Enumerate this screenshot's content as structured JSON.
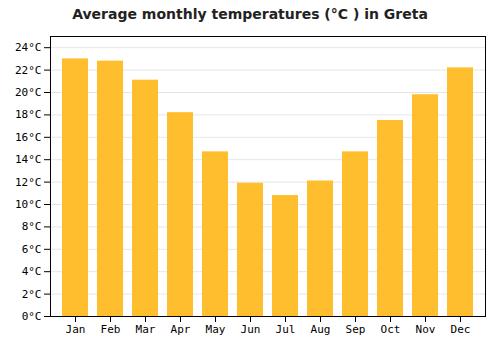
{
  "chart_data": {
    "type": "bar",
    "title": "Average monthly temperatures (°C ) in Greta",
    "categories": [
      "Jan",
      "Feb",
      "Mar",
      "Apr",
      "May",
      "Jun",
      "Jul",
      "Aug",
      "Sep",
      "Oct",
      "Nov",
      "Dec"
    ],
    "values": [
      23.0,
      22.8,
      21.1,
      18.2,
      14.7,
      11.9,
      10.8,
      12.1,
      14.7,
      17.5,
      19.8,
      22.2
    ],
    "color": "#FFBE2D",
    "ylim": [
      0,
      25
    ],
    "yticks": [
      {
        "value": 0,
        "label": "0°C"
      },
      {
        "value": 2,
        "label": "2°C"
      },
      {
        "value": 4,
        "label": "4°C"
      },
      {
        "value": 6,
        "label": "6°C"
      },
      {
        "value": 8,
        "label": "8°C"
      },
      {
        "value": 10,
        "label": "10°C"
      },
      {
        "value": 12,
        "label": "12°C"
      },
      {
        "value": 14,
        "label": "14°C"
      },
      {
        "value": 16,
        "label": "16°C"
      },
      {
        "value": 18,
        "label": "18°C"
      },
      {
        "value": 20,
        "label": "20°C"
      },
      {
        "value": 22,
        "label": "22°C"
      },
      {
        "value": 24,
        "label": "24°C"
      }
    ],
    "grid": true
  }
}
